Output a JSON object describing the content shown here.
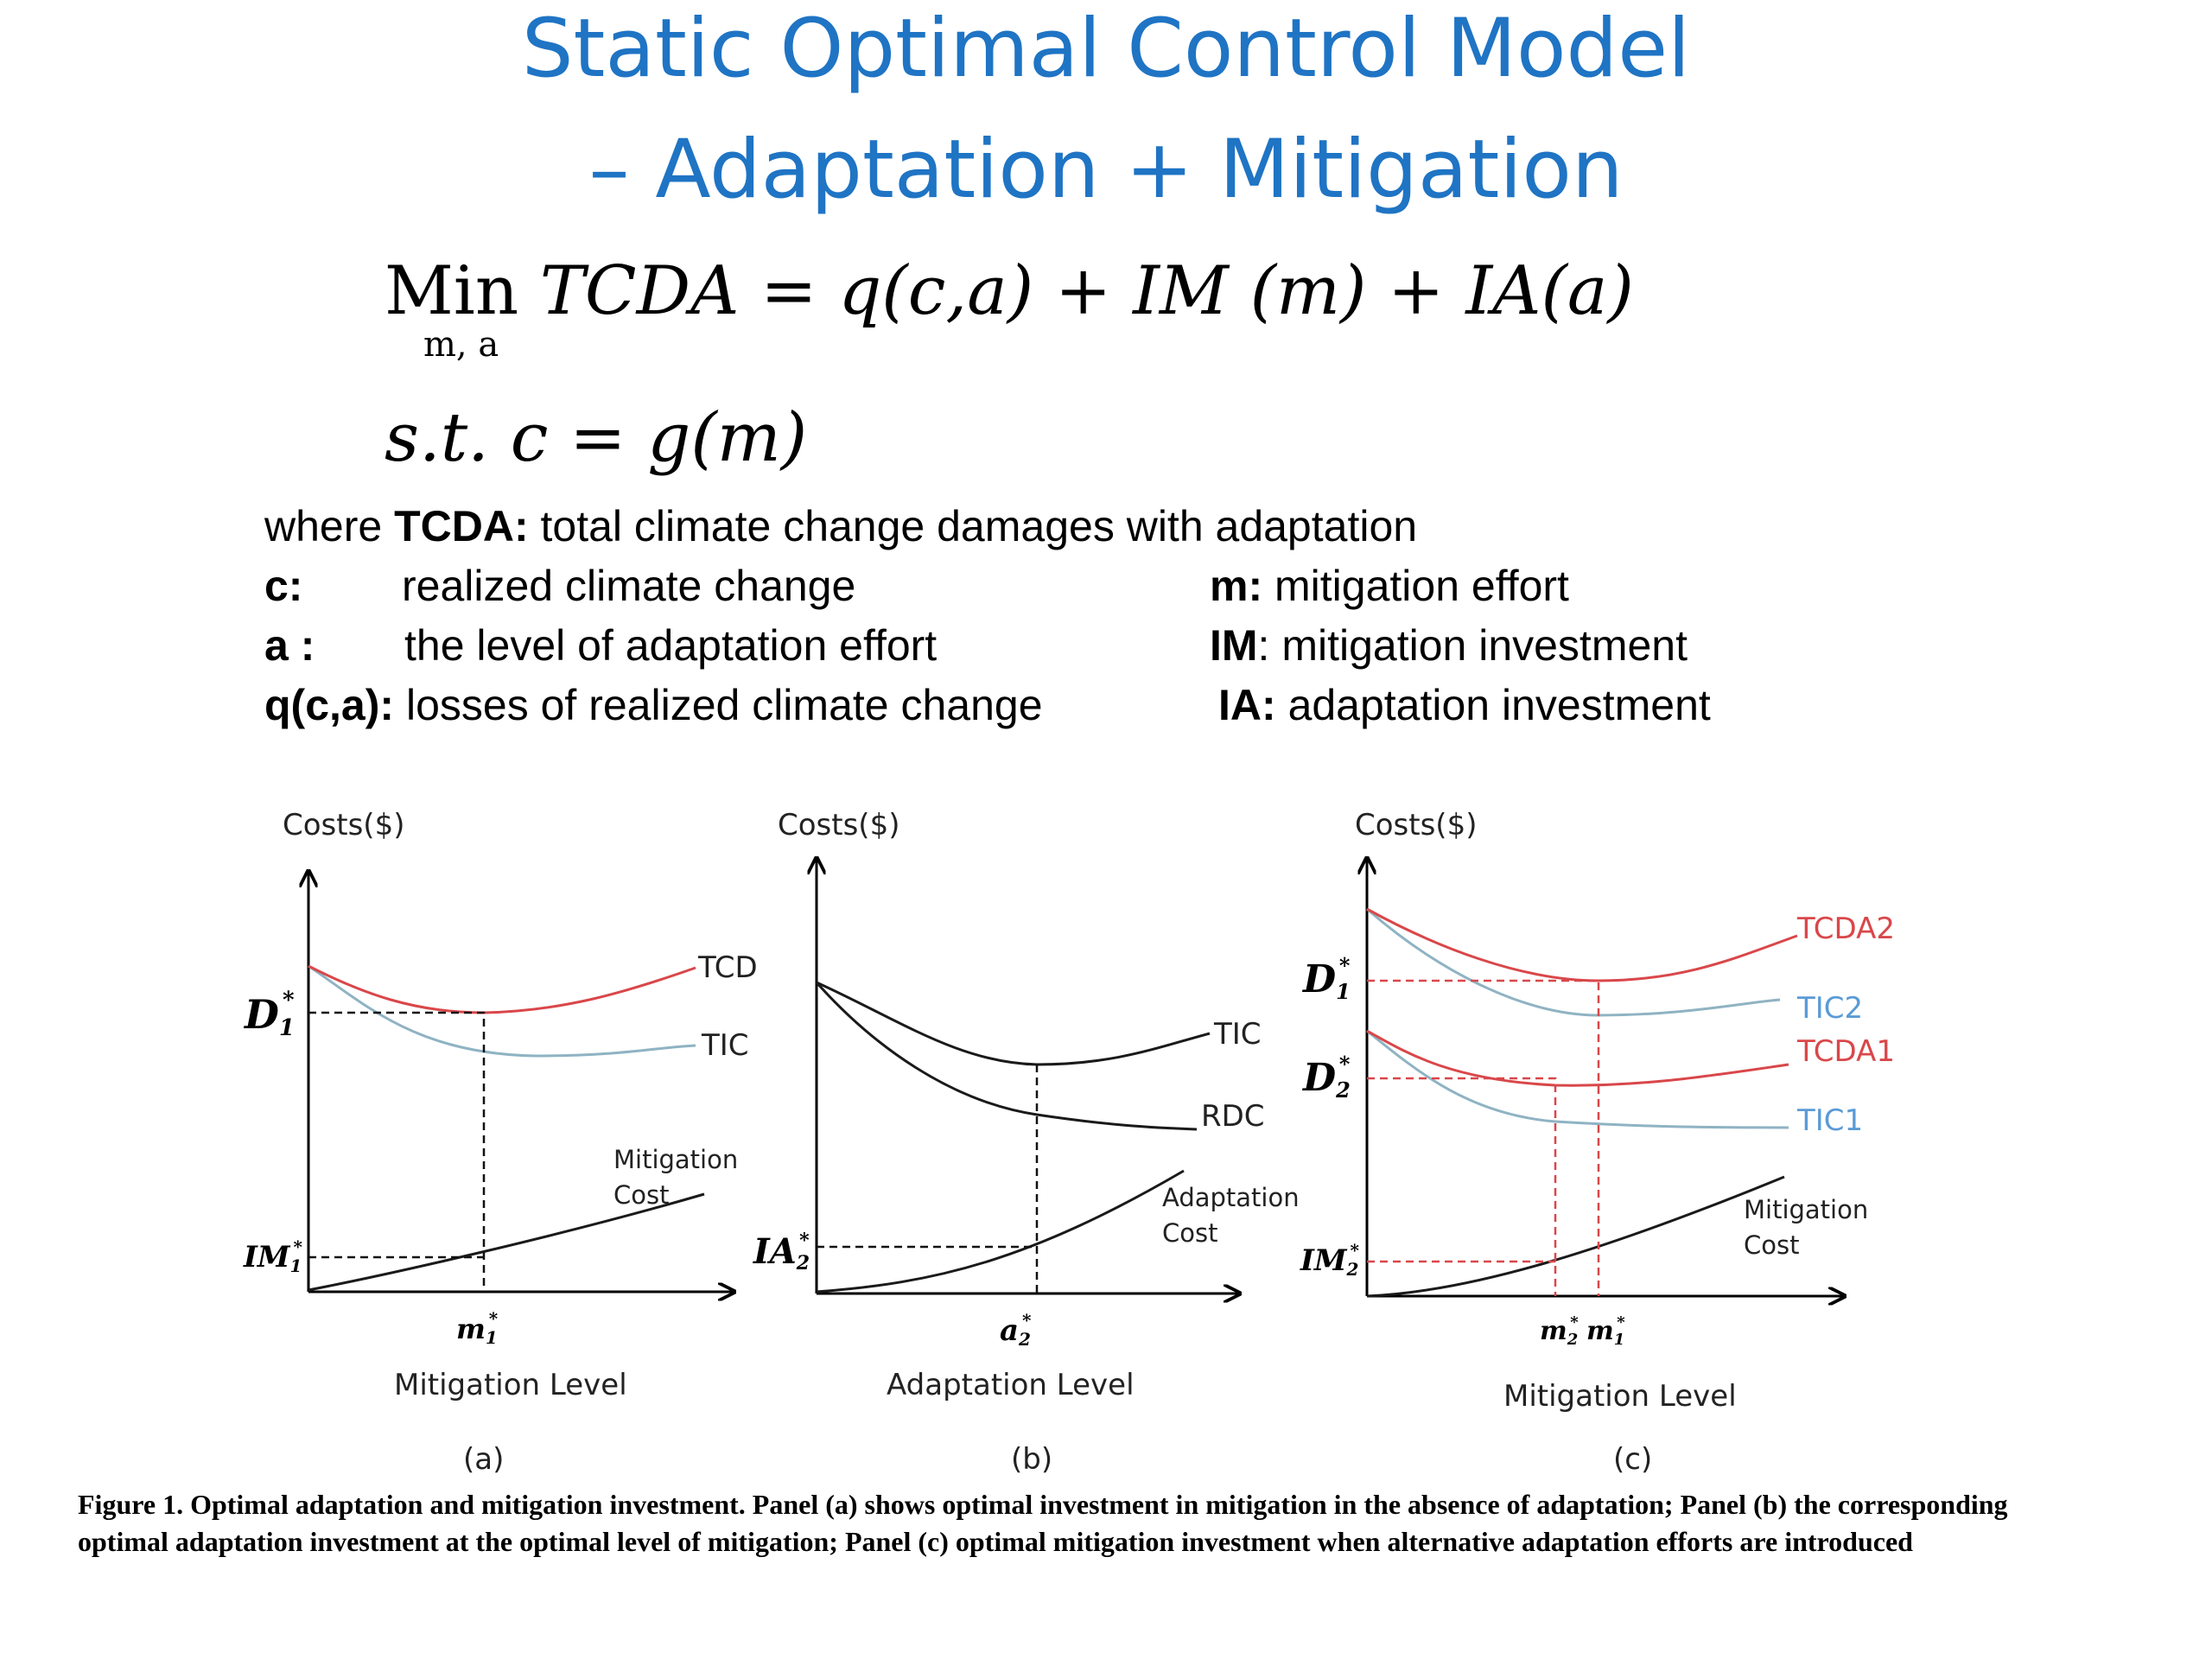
{
  "title": {
    "line1": "Static Optimal Control Model",
    "line2": "– Adaptation + Mitigation"
  },
  "equation": {
    "objective_min": "Min",
    "objective_expr": "TCDA = q(c,a) + IM (m) + IA(a)",
    "objective_sub": "m, a",
    "constraint": "s.t.   c = g(m)"
  },
  "definitions": {
    "where_prefix": "where",
    "tcda_term": "TCDA:",
    "tcda_desc": "total climate change damages with adaptation",
    "c_term": "c:",
    "c_desc": "realized climate change",
    "a_term": "a :",
    "a_desc": "the level of adaptation effort",
    "q_term": "q(c,a):",
    "q_desc": "losses of realized climate change",
    "m_term": "m:",
    "m_desc": "mitigation effort",
    "im_term": "IM",
    "im_desc": ": mitigation investment",
    "ia_term": "IA:",
    "ia_desc": "adaptation investment"
  },
  "panels": {
    "a": {
      "ylabel": "Costs($)",
      "xlabel": "Mitigation Level",
      "panel_label": "(a)",
      "curve_tcd": "TCD",
      "curve_tic": "TIC",
      "curve_cost_1": "Mitigation",
      "curve_cost_2": "Cost",
      "y_mark_top_base": "D",
      "y_mark_top_sub": "1",
      "y_mark_bottom_base": "IM",
      "y_mark_bottom_sub": "1",
      "x_mark_base": "m",
      "x_mark_sub": "1",
      "star": "*"
    },
    "b": {
      "ylabel": "Costs($)",
      "xlabel": "Adaptation Level",
      "panel_label": "(b)",
      "curve_tic": "TIC",
      "curve_rdc": "RDC",
      "curve_cost_1": "Adaptation",
      "curve_cost_2": "Cost",
      "y_mark_base": "IA",
      "y_mark_sub": "2",
      "x_mark_base": "a",
      "x_mark_sub": "2",
      "star": "*"
    },
    "c": {
      "ylabel": "Costs($)",
      "xlabel": "Mitigation Level",
      "panel_label": "(c)",
      "curve_tcda2": "TCDA2",
      "curve_tic2": "TIC2",
      "curve_tcda1": "TCDA1",
      "curve_tic1": "TIC1",
      "curve_cost_1": "Mitigation",
      "curve_cost_2": "Cost",
      "y_mark_1_base": "D",
      "y_mark_1_sub": "1",
      "y_mark_2_base": "D",
      "y_mark_2_sub": "2",
      "y_mark_3_base": "IM",
      "y_mark_3_sub": "2",
      "x_mark_1_base": "m",
      "x_mark_1_sub": "2",
      "x_mark_2_base": "m",
      "x_mark_2_sub": "1",
      "star": "*"
    }
  },
  "colors": {
    "title": "#1f74c4",
    "tcd_red": "#d9474a",
    "tic_blue": "#8fb3c3",
    "tic_label_blue": "#5b9bd5"
  },
  "caption": "Figure 1. Optimal adaptation and mitigation investment. Panel (a) shows optimal investment in mitigation in the absence of adaptation; Panel (b) the corresponding optimal adaptation investment at the optimal level of mitigation; Panel (c) optimal mitigation investment when alternative adaptation efforts are introduced"
}
